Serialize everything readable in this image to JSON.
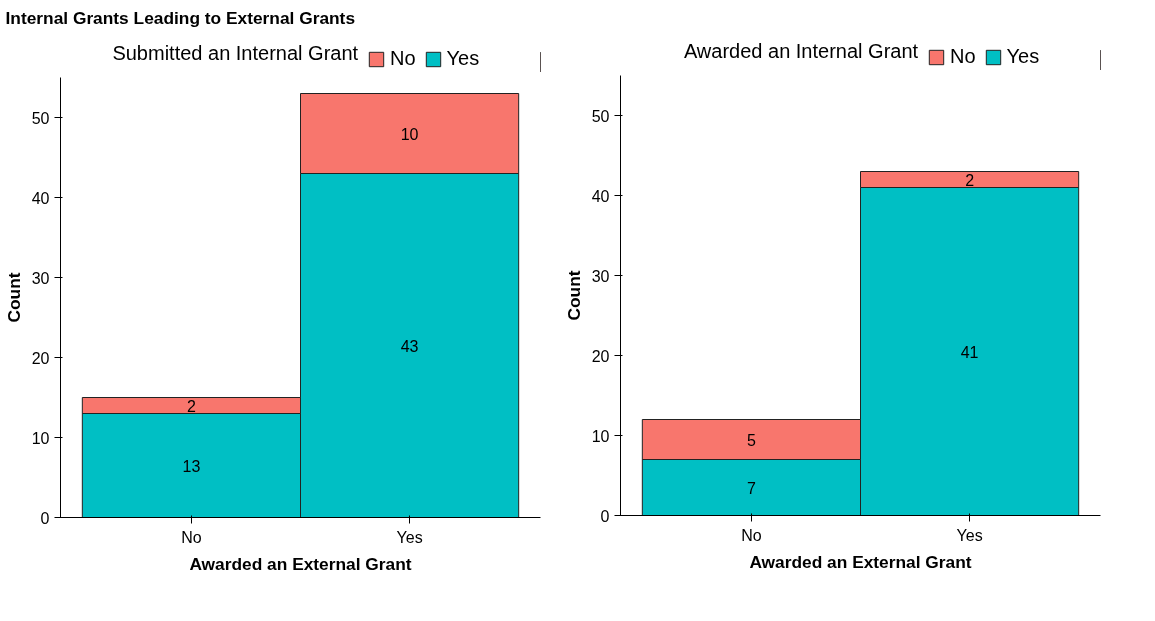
{
  "chart_data": [
    {
      "type": "bar",
      "title": "Internal Grants Leading to External Grants",
      "legend_title": "Submitted an Internal Grant",
      "xlabel": "Awarded an External Grant",
      "ylabel": "Count",
      "categories": [
        "No",
        "Yes"
      ],
      "stacked": true,
      "data_labels": true,
      "legend": "top",
      "grid": false,
      "ylim": [
        0,
        55
      ],
      "yticks": [
        0,
        10,
        20,
        30,
        40,
        50
      ],
      "series": [
        {
          "name": "Yes",
          "color": "#00bfc4",
          "values": [
            13,
            43
          ]
        },
        {
          "name": "No",
          "color": "#f8766d",
          "values": [
            2,
            10
          ]
        }
      ]
    },
    {
      "type": "bar",
      "legend_title": "Awarded an Internal Grant",
      "xlabel": "Awarded an External Grant",
      "ylabel": "Count",
      "categories": [
        "No",
        "Yes"
      ],
      "stacked": true,
      "data_labels": true,
      "legend": "top",
      "grid": false,
      "ylim": [
        0,
        55
      ],
      "yticks": [
        0,
        10,
        20,
        30,
        40,
        50
      ],
      "series": [
        {
          "name": "Yes",
          "color": "#00bfc4",
          "values": [
            7,
            41
          ]
        },
        {
          "name": "No",
          "color": "#f8766d",
          "values": [
            5,
            2
          ]
        }
      ]
    }
  ]
}
